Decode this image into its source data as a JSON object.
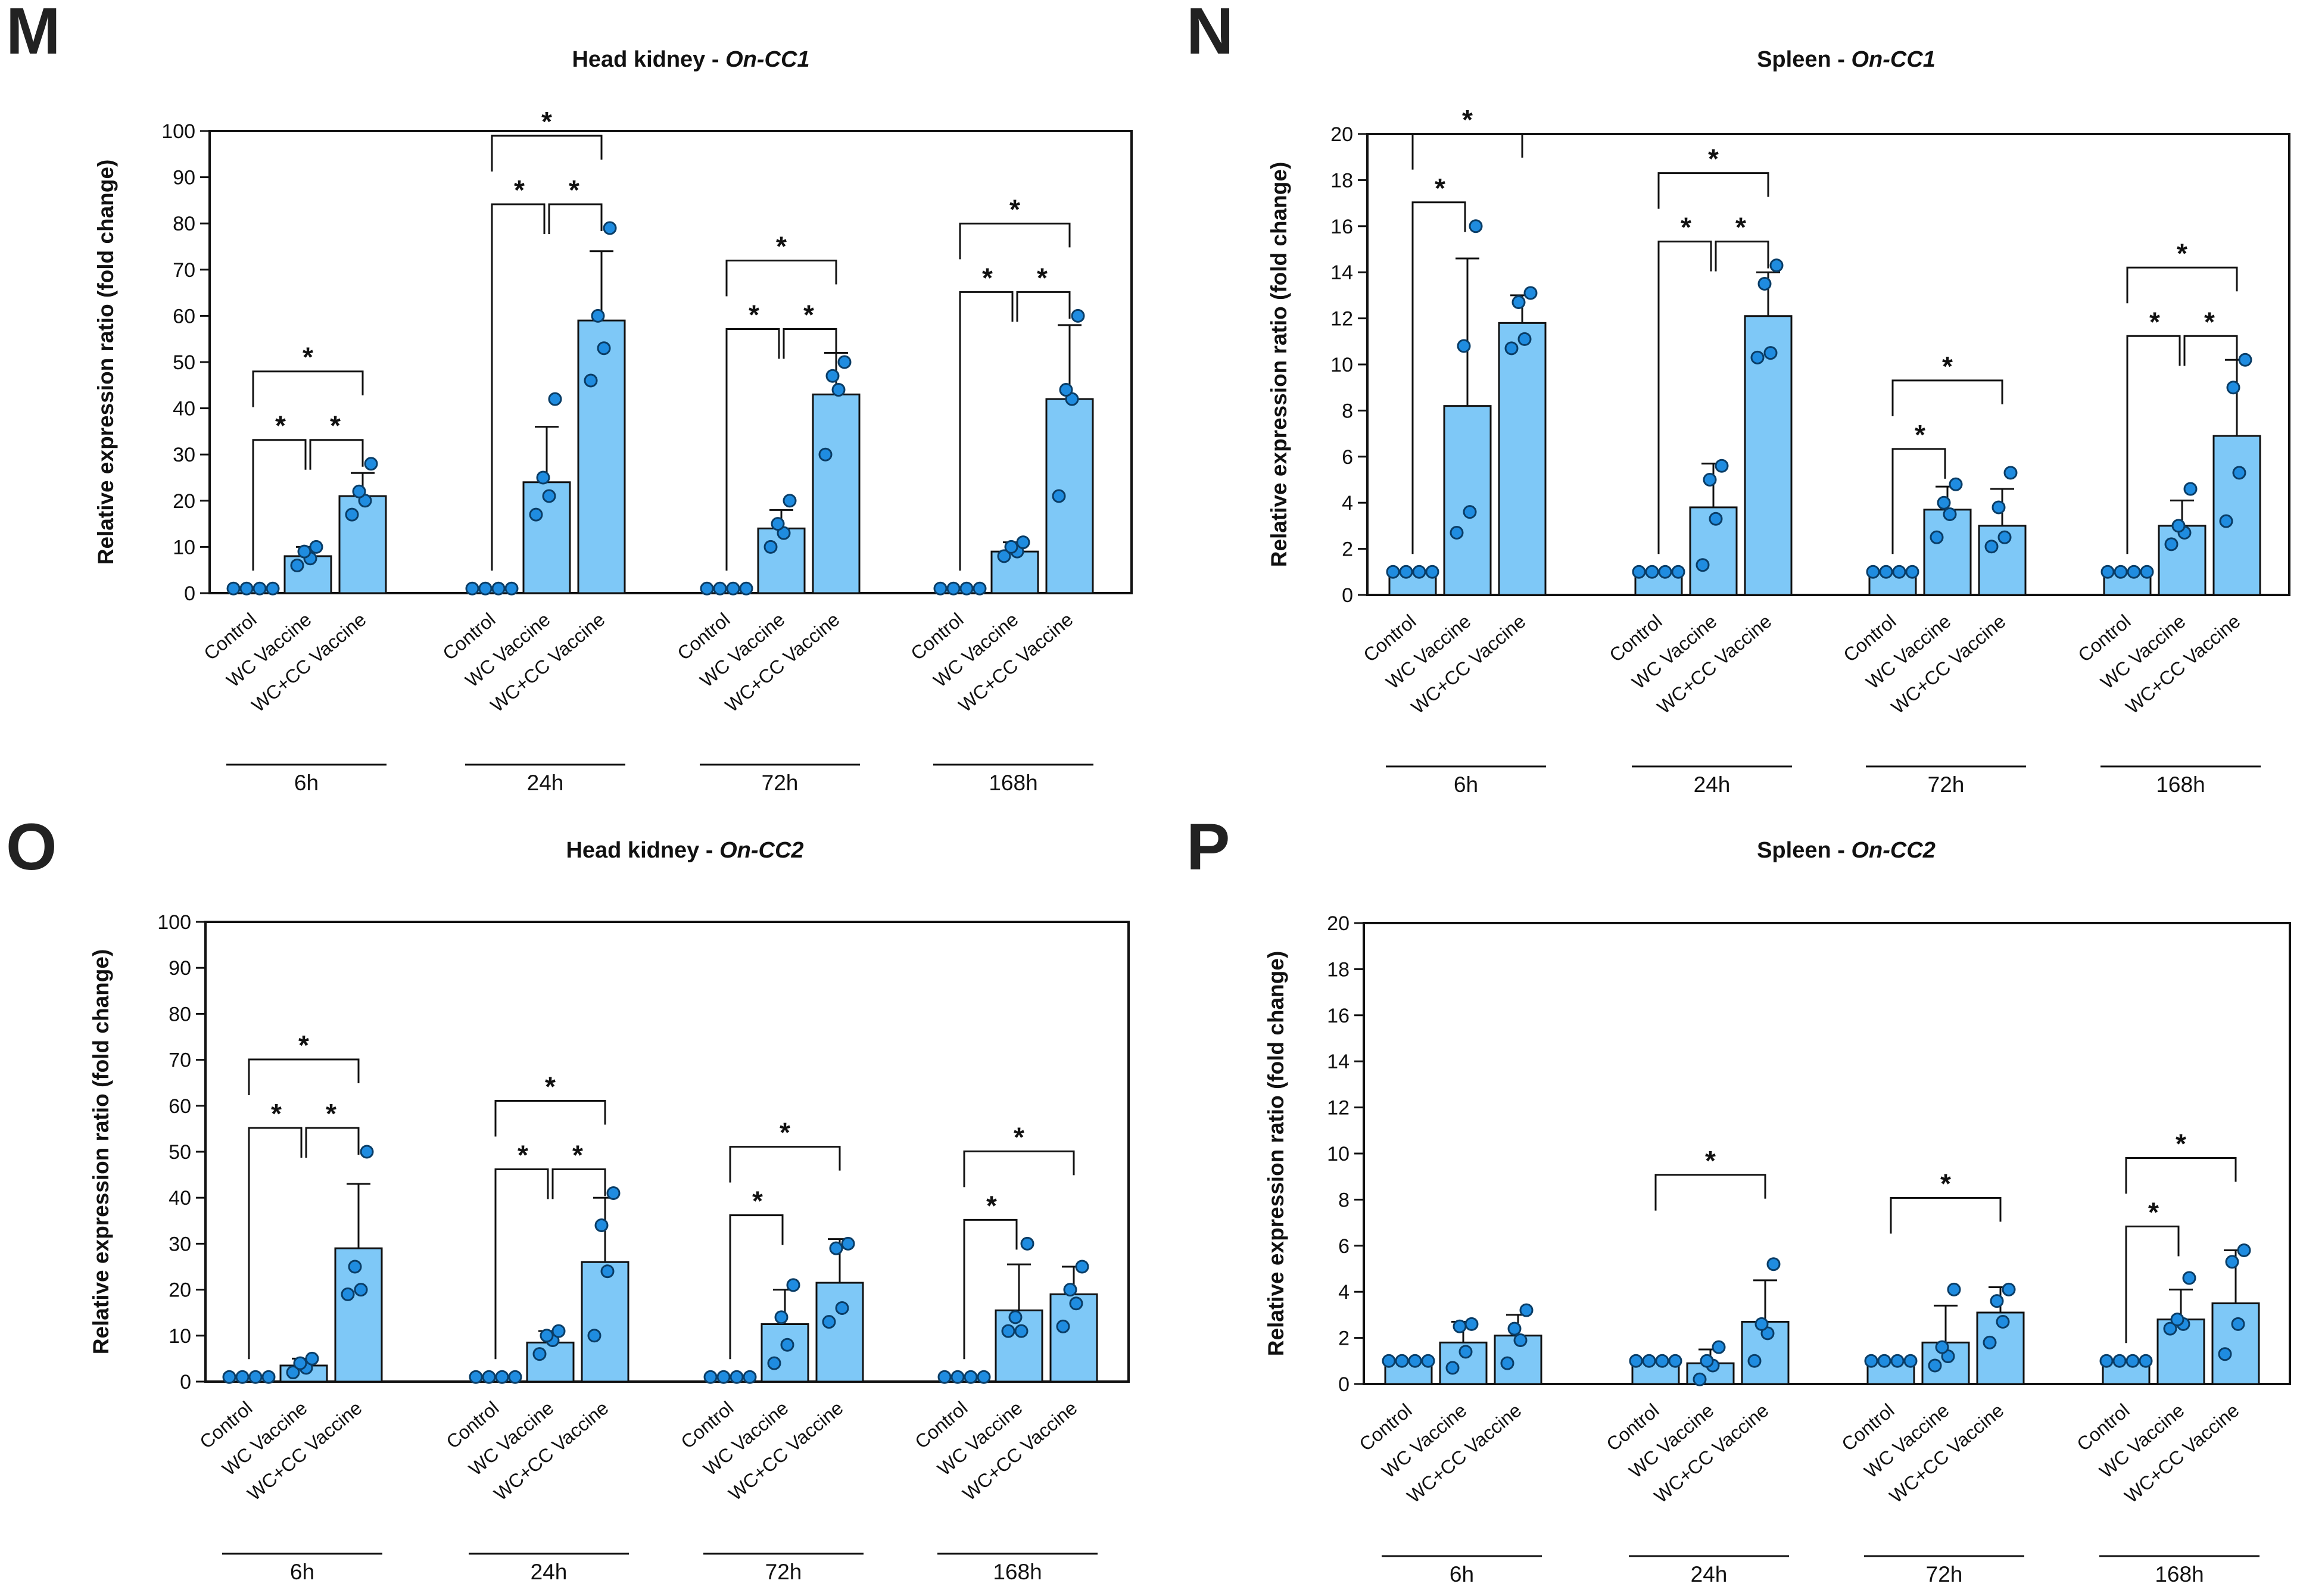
{
  "chart_data": [
    {
      "panel": "M",
      "type": "bar",
      "title_plain": "Head kidney - ",
      "title_italic": "On-CC1",
      "ylabel": "Relative expression ratio (fold change)",
      "ylim": [
        0,
        100
      ],
      "yticks": [
        0,
        10,
        20,
        30,
        40,
        50,
        60,
        70,
        80,
        90,
        100
      ],
      "categories": [
        "Control",
        "WC Vaccine",
        "WC+CC Vaccine"
      ],
      "groups": [
        {
          "label": "6h",
          "means": [
            1,
            8,
            21
          ],
          "errors": [
            0,
            2,
            5
          ],
          "points": [
            [
              1,
              1,
              1,
              1
            ],
            [
              6,
              7.5,
              9,
              10
            ],
            [
              17,
              20,
              22,
              28
            ]
          ],
          "comparisons": [
            {
              "from": 0,
              "to": 2,
              "label": "*"
            },
            {
              "from": 0,
              "to": 1,
              "label": "*"
            },
            {
              "from": 1,
              "to": 2,
              "label": "*"
            }
          ]
        },
        {
          "label": "24h",
          "means": [
            1,
            24,
            59
          ],
          "errors": [
            0,
            12,
            15
          ],
          "points": [
            [
              1,
              1,
              1,
              1
            ],
            [
              17,
              21,
              25,
              42
            ],
            [
              46,
              53,
              60,
              79
            ]
          ],
          "comparisons": [
            {
              "from": 0,
              "to": 2,
              "label": "*"
            },
            {
              "from": 0,
              "to": 1,
              "label": "*"
            },
            {
              "from": 1,
              "to": 2,
              "label": "*"
            }
          ]
        },
        {
          "label": "72h",
          "means": [
            1,
            14,
            43
          ],
          "errors": [
            0,
            4,
            9
          ],
          "points": [
            [
              1,
              1,
              1,
              1
            ],
            [
              10,
              13,
              15,
              20
            ],
            [
              30,
              44,
              47,
              50
            ]
          ],
          "comparisons": [
            {
              "from": 0,
              "to": 2,
              "label": "*"
            },
            {
              "from": 0,
              "to": 1,
              "label": "*"
            },
            {
              "from": 1,
              "to": 2,
              "label": "*"
            }
          ]
        },
        {
          "label": "168h",
          "means": [
            1,
            9,
            42
          ],
          "errors": [
            0,
            2,
            16
          ],
          "points": [
            [
              1,
              1,
              1,
              1
            ],
            [
              8,
              9,
              10,
              11
            ],
            [
              21,
              42,
              44,
              60
            ]
          ],
          "comparisons": [
            {
              "from": 0,
              "to": 2,
              "label": "*"
            },
            {
              "from": 0,
              "to": 1,
              "label": "*"
            },
            {
              "from": 1,
              "to": 2,
              "label": "*"
            }
          ]
        }
      ]
    },
    {
      "panel": "N",
      "type": "bar",
      "title_plain": "Spleen - ",
      "title_italic": "On-CC1",
      "ylabel": "Relative expression ratio (fold change)",
      "ylim": [
        0,
        20
      ],
      "yticks": [
        0,
        2,
        4,
        6,
        8,
        10,
        12,
        14,
        16,
        18,
        20
      ],
      "categories": [
        "Control",
        "WC Vaccine",
        "WC+CC Vaccine"
      ],
      "groups": [
        {
          "label": "6h",
          "means": [
            1,
            8.2,
            11.8
          ],
          "errors": [
            0,
            6.4,
            1.2
          ],
          "points": [
            [
              1,
              1,
              1,
              1
            ],
            [
              2.7,
              3.6,
              10.8,
              16
            ],
            [
              10.7,
              11.1,
              12.7,
              13.1
            ]
          ],
          "comparisons": [
            {
              "from": 0,
              "to": 2,
              "label": "*"
            },
            {
              "from": 0,
              "to": 1,
              "label": "*"
            }
          ]
        },
        {
          "label": "24h",
          "means": [
            1,
            3.8,
            12.1
          ],
          "errors": [
            0,
            1.9,
            1.9
          ],
          "points": [
            [
              1,
              1,
              1,
              1
            ],
            [
              1.3,
              3.3,
              5.0,
              5.6
            ],
            [
              10.3,
              10.5,
              13.5,
              14.3
            ]
          ],
          "comparisons": [
            {
              "from": 0,
              "to": 2,
              "label": "*"
            },
            {
              "from": 0,
              "to": 1,
              "label": "*"
            },
            {
              "from": 1,
              "to": 2,
              "label": "*"
            }
          ]
        },
        {
          "label": "72h",
          "means": [
            1,
            3.7,
            3.0
          ],
          "errors": [
            0,
            1.0,
            1.6
          ],
          "points": [
            [
              1,
              1,
              1,
              1
            ],
            [
              2.5,
              3.5,
              4.0,
              4.8
            ],
            [
              2.1,
              2.5,
              3.8,
              5.3
            ]
          ],
          "comparisons": [
            {
              "from": 0,
              "to": 2,
              "label": "*"
            },
            {
              "from": 0,
              "to": 1,
              "label": "*"
            }
          ]
        },
        {
          "label": "168h",
          "means": [
            1,
            3.0,
            6.9
          ],
          "errors": [
            0,
            1.1,
            3.3
          ],
          "points": [
            [
              1,
              1,
              1,
              1
            ],
            [
              2.2,
              2.7,
              3.0,
              4.6
            ],
            [
              3.2,
              5.3,
              9.0,
              10.2
            ]
          ],
          "comparisons": [
            {
              "from": 0,
              "to": 2,
              "label": "*"
            },
            {
              "from": 0,
              "to": 1,
              "label": "*"
            },
            {
              "from": 1,
              "to": 2,
              "label": "*"
            }
          ]
        }
      ]
    },
    {
      "panel": "O",
      "type": "bar",
      "title_plain": "Head kidney - ",
      "title_italic": "On-CC2",
      "ylabel": "Relative expression ratio (fold change)",
      "ylim": [
        0,
        100
      ],
      "yticks": [
        0,
        10,
        20,
        30,
        40,
        50,
        60,
        70,
        80,
        90,
        100
      ],
      "categories": [
        "Control",
        "WC Vaccine",
        "WC+CC Vaccine"
      ],
      "groups": [
        {
          "label": "6h",
          "means": [
            1,
            3.5,
            29
          ],
          "errors": [
            0,
            1.5,
            14
          ],
          "points": [
            [
              1,
              1,
              1,
              1
            ],
            [
              2,
              3,
              4,
              5
            ],
            [
              19,
              20,
              25,
              50
            ]
          ],
          "comparisons": [
            {
              "from": 0,
              "to": 2,
              "label": "*"
            },
            {
              "from": 0,
              "to": 1,
              "label": "*"
            },
            {
              "from": 1,
              "to": 2,
              "label": "*"
            }
          ]
        },
        {
          "label": "24h",
          "means": [
            1,
            8.5,
            26
          ],
          "errors": [
            0,
            2.5,
            14
          ],
          "points": [
            [
              1,
              1,
              1,
              1
            ],
            [
              6,
              9,
              10,
              11
            ],
            [
              10,
              24,
              34,
              41
            ]
          ],
          "comparisons": [
            {
              "from": 0,
              "to": 2,
              "label": "*"
            },
            {
              "from": 0,
              "to": 1,
              "label": "*"
            },
            {
              "from": 1,
              "to": 2,
              "label": "*"
            }
          ]
        },
        {
          "label": "72h",
          "means": [
            1,
            12.5,
            21.5
          ],
          "errors": [
            0,
            7.5,
            9.5
          ],
          "points": [
            [
              1,
              1,
              1,
              1
            ],
            [
              4,
              8,
              14,
              21
            ],
            [
              13,
              16,
              29,
              30
            ]
          ],
          "comparisons": [
            {
              "from": 0,
              "to": 2,
              "label": "*"
            },
            {
              "from": 0,
              "to": 1,
              "label": "*"
            }
          ]
        },
        {
          "label": "168h",
          "means": [
            1,
            15.5,
            19
          ],
          "errors": [
            0,
            10,
            6
          ],
          "points": [
            [
              1,
              1,
              1,
              1
            ],
            [
              11,
              11,
              14,
              30
            ],
            [
              12,
              17,
              20,
              25
            ]
          ],
          "comparisons": [
            {
              "from": 0,
              "to": 2,
              "label": "*"
            },
            {
              "from": 0,
              "to": 1,
              "label": "*"
            }
          ]
        }
      ]
    },
    {
      "panel": "P",
      "type": "bar",
      "title_plain": "Spleen - ",
      "title_italic": "On-CC2",
      "ylabel": "Relative expression ratio (fold change)",
      "ylim": [
        0,
        20
      ],
      "yticks": [
        0,
        2,
        4,
        6,
        8,
        10,
        12,
        14,
        16,
        18,
        20
      ],
      "categories": [
        "Control",
        "WC Vaccine",
        "WC+CC Vaccine"
      ],
      "groups": [
        {
          "label": "6h",
          "means": [
            1,
            1.8,
            2.1
          ],
          "errors": [
            0,
            0.9,
            0.9
          ],
          "points": [
            [
              1,
              1,
              1,
              1
            ],
            [
              0.7,
              1.4,
              2.5,
              2.6
            ],
            [
              0.9,
              1.9,
              2.4,
              3.2
            ]
          ],
          "comparisons": []
        },
        {
          "label": "24h",
          "means": [
            1,
            0.9,
            2.7
          ],
          "errors": [
            0,
            0.6,
            1.8
          ],
          "points": [
            [
              1,
              1,
              1,
              1
            ],
            [
              0.2,
              0.8,
              1.0,
              1.6
            ],
            [
              1.0,
              2.2,
              2.6,
              5.2
            ]
          ],
          "comparisons": [
            {
              "from": 0,
              "to": 2,
              "label": "*"
            }
          ]
        },
        {
          "label": "72h",
          "means": [
            1,
            1.8,
            3.1
          ],
          "errors": [
            0,
            1.6,
            1.1
          ],
          "points": [
            [
              1,
              1,
              1,
              1
            ],
            [
              0.8,
              1.2,
              1.6,
              4.1
            ],
            [
              1.8,
              2.7,
              3.6,
              4.1
            ]
          ],
          "comparisons": [
            {
              "from": 0,
              "to": 2,
              "label": "*"
            }
          ]
        },
        {
          "label": "168h",
          "means": [
            1,
            2.8,
            3.5
          ],
          "errors": [
            0,
            1.3,
            2.3
          ],
          "points": [
            [
              1,
              1,
              1,
              1
            ],
            [
              2.4,
              2.6,
              2.8,
              4.6
            ],
            [
              1.3,
              2.6,
              5.3,
              5.8
            ]
          ],
          "comparisons": [
            {
              "from": 0,
              "to": 2,
              "label": "*"
            },
            {
              "from": 0,
              "to": 1,
              "label": "*"
            }
          ]
        }
      ]
    }
  ],
  "style": {
    "bar_fill": "#7ec8f7",
    "bar_stroke": "#111111",
    "point_fill": "#1f8ce0",
    "point_stroke": "#0a3d66",
    "line_color": "#111111"
  }
}
